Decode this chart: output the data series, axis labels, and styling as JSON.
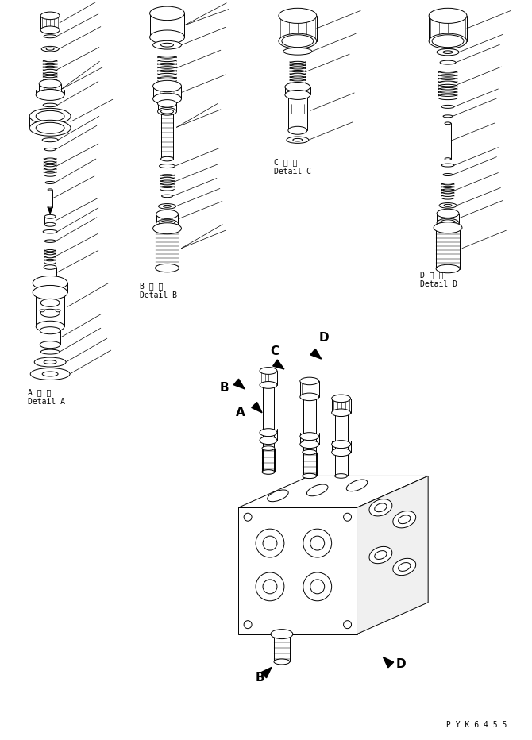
{
  "bg_color": "#ffffff",
  "line_color": "#000000",
  "fig_width": 6.7,
  "fig_height": 9.32,
  "dpi": 100,
  "labels": {
    "detail_a_jp": "A 詳 細",
    "detail_a_en": "Detail A",
    "detail_b_jp": "B 詳 細",
    "detail_b_en": "Detail B",
    "detail_c_jp": "C 詳 細",
    "detail_c_en": "Detail C",
    "detail_d_jp": "D 詳 細",
    "detail_d_en": "Detail D",
    "part_id": "P Y K 6 4 5 5"
  }
}
